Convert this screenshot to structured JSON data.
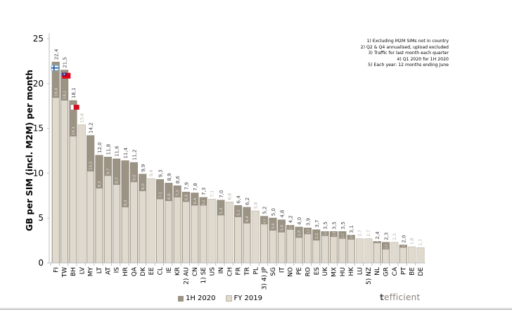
{
  "chart_data": {
    "type": "bar",
    "title": "",
    "ylabel": "GB per SIM (incl. M2M) per month",
    "xlabel": "",
    "ylim": [
      0,
      25
    ],
    "yticks": [
      0,
      5,
      10,
      15,
      20,
      25
    ],
    "grid": false,
    "legend_position": "bottom-left",
    "categories": [
      "FI",
      "TW",
      "BH",
      "LV",
      "MY",
      "LT",
      "AT",
      "IS",
      "HR",
      "QA",
      "DK",
      "EE",
      "CL",
      "IE",
      "KR",
      "2) AU",
      "CN",
      "1) SE",
      "US",
      "IN",
      "CH",
      "FR",
      "TR",
      "PL",
      "3) 4) JP",
      "SG",
      "IT",
      "NO",
      "PE",
      "RO",
      "ES",
      "UK",
      "MX",
      "HU",
      "HK",
      "LU",
      "5) NZ",
      "NL",
      "GR",
      "CA",
      "PT",
      "BE",
      "DE"
    ],
    "series": [
      {
        "name": "1H 2020",
        "color": "#9b9384",
        "values": [
          22.4,
          21.5,
          18.1,
          null,
          14.2,
          12.0,
          11.8,
          11.6,
          11.4,
          11.2,
          9.9,
          null,
          9.3,
          8.9,
          8.6,
          7.9,
          7.8,
          7.3,
          null,
          7.0,
          null,
          6.4,
          6.2,
          null,
          5.2,
          5.0,
          4.8,
          4.2,
          4.0,
          3.9,
          3.7,
          3.5,
          3.5,
          3.5,
          3.1,
          null,
          null,
          2.4,
          2.3,
          null,
          2.0,
          null,
          null
        ],
        "labels": [
          "22,4",
          "21,5",
          "18,1",
          "",
          "14,2",
          "12,0",
          "11,8",
          "11,6",
          "11,4",
          "11,2",
          "9,9",
          "",
          "9,3",
          "8,9",
          "8,6",
          "7,9",
          "7,8",
          "7,3",
          "",
          "7,0",
          "",
          "6,4",
          "6,2",
          "",
          "5,2",
          "5,0",
          "4,8",
          "4,2",
          "4,0",
          "3,9",
          "3,7",
          "3,5",
          "3,5",
          "3,5",
          "3,1",
          "",
          "",
          "2,4",
          "2,3",
          "",
          "2,0",
          "",
          ""
        ]
      },
      {
        "name": "FY 2019",
        "color": "#e0d9ce",
        "values": [
          18.4,
          18.1,
          14.1,
          15.4,
          10.2,
          8.3,
          9.7,
          8.7,
          6.2,
          9.0,
          8.0,
          9.4,
          7.1,
          6.9,
          7.3,
          6.8,
          6.4,
          6.4,
          7.1,
          5.3,
          6.8,
          5.1,
          4.4,
          5.8,
          4.3,
          3.6,
          3.4,
          3.7,
          2.8,
          3.2,
          2.5,
          3.0,
          2.9,
          2.7,
          2.6,
          2.7,
          2.7,
          2.2,
          1.5,
          2.3,
          1.7,
          1.8,
          1.7
        ],
        "labels": [
          "18,4",
          "18,1",
          "14,1",
          "15,4",
          "10,2",
          "8,3",
          "9,7",
          "8,7",
          "6,2",
          "9,0",
          "8,0",
          "9,4",
          "7,1",
          "6,9",
          "7,3",
          "6,8",
          "6,4",
          "6,4",
          "7,1",
          "5,3",
          "6,8",
          "5,1",
          "4,4",
          "5,8",
          "4,3",
          "3,6",
          "3,4",
          "3,7",
          "2,8",
          "3,2",
          "2,5",
          "3,0",
          "2,9",
          "2,7",
          "2,6",
          "2,7",
          "2,7",
          "2,2",
          "1,5",
          "2,3",
          "1,7",
          "1,8",
          "1,7"
        ]
      }
    ],
    "flags": [
      {
        "category": "FI",
        "icon": "finland-flag-icon"
      },
      {
        "category": "TW",
        "icon": "taiwan-flag-icon"
      },
      {
        "category": "BH",
        "icon": "bahrain-flag-icon"
      }
    ],
    "notes": [
      "1) Excluding M2M SIMs not in country",
      "2) Q2 & Q4 annualised, upload excluded",
      "3) Traffic for last month each quarter",
      "4) Q1 2020 for 1H 2020",
      "5) Each year: 12 months ending June"
    ],
    "legend": [
      "1H 2020",
      "FY 2019"
    ]
  },
  "brand": {
    "name": "tefficient"
  }
}
